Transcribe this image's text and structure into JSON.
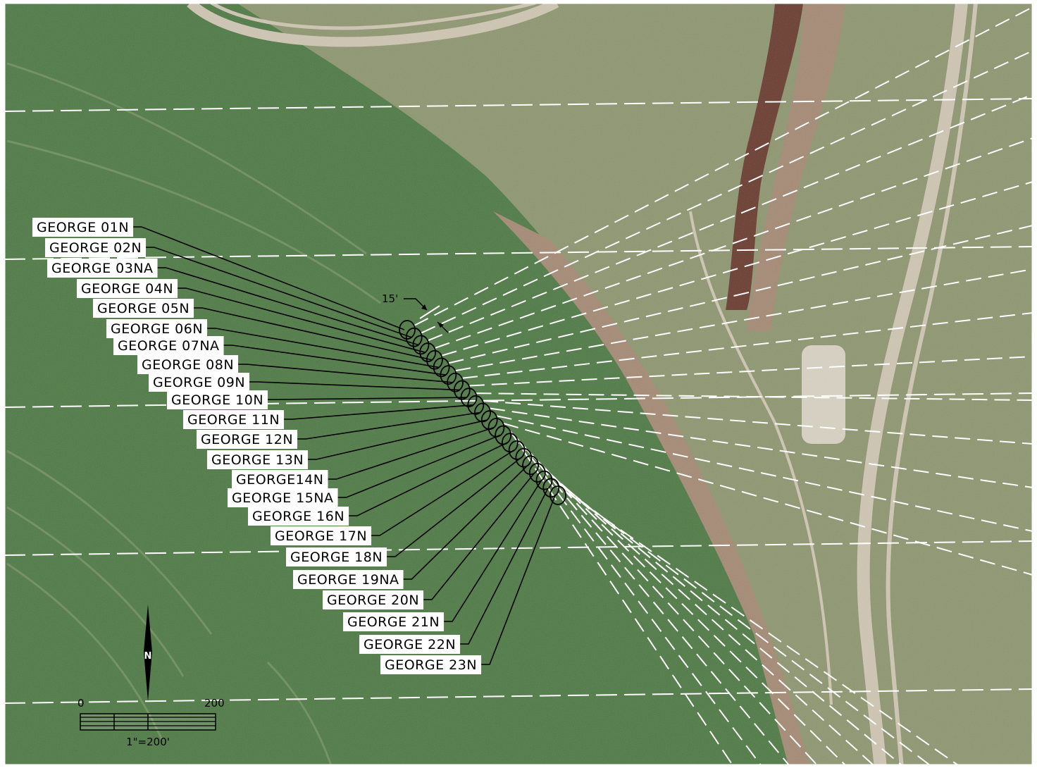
{
  "map": {
    "colors": {
      "field": "#4f7a45",
      "field_light": "#6e8f5e",
      "pasture": "#8e9670",
      "bare_soil": "#a48a74",
      "creek": "#6a3c30",
      "road": "#cfc6b2",
      "gravel_pad": "#d8d2c2",
      "frame": "#ffffff"
    },
    "wells": [
      {
        "label": "GEORGE 01N"
      },
      {
        "label": "GEORGE 02N"
      },
      {
        "label": "GEORGE 03NA"
      },
      {
        "label": "GEORGE 04N"
      },
      {
        "label": "GEORGE 05N"
      },
      {
        "label": "GEORGE 06N"
      },
      {
        "label": "GEORGE 07NA"
      },
      {
        "label": "GEORGE 08N"
      },
      {
        "label": "GEORGE 09N"
      },
      {
        "label": "GEORGE 10N"
      },
      {
        "label": "GEORGE 11N"
      },
      {
        "label": "GEORGE 12N"
      },
      {
        "label": "GEORGE 13N"
      },
      {
        "label": "GEORGE14N"
      },
      {
        "label": "GEORGE 15NA"
      },
      {
        "label": "GEORGE 16N"
      },
      {
        "label": "GEORGE 17N"
      },
      {
        "label": "GEORGE 18N"
      },
      {
        "label": "GEORGE 19NA"
      },
      {
        "label": "GEORGE 20N"
      },
      {
        "label": "GEORGE 21N"
      },
      {
        "label": "GEORGE 22N"
      },
      {
        "label": "GEORGE 23N"
      }
    ],
    "spacing_label": "15'",
    "north_arrow": {
      "letter": "N",
      "icon": "north-arrow-icon"
    },
    "scale_bar": {
      "start_label": "0",
      "end_label": "200",
      "ratio_label": "1\"=200'"
    }
  }
}
